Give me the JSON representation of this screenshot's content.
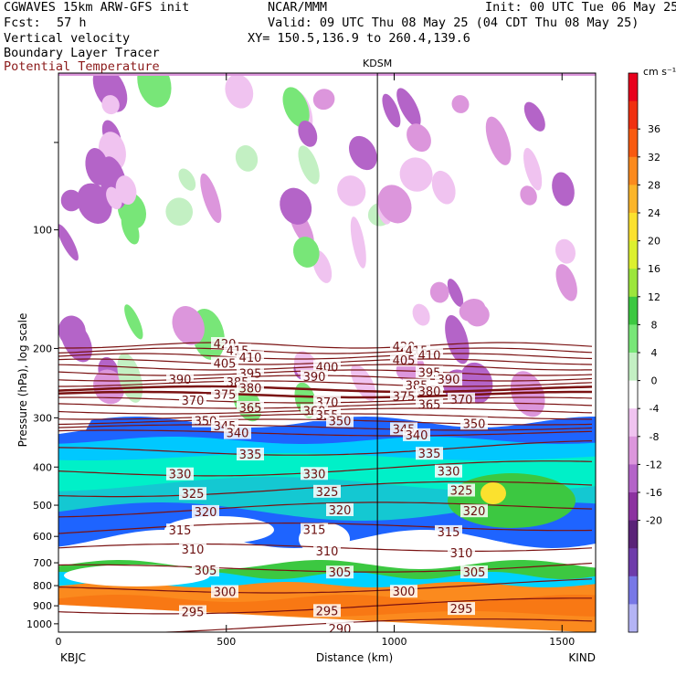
{
  "header": {
    "model": "CGWAVES 15km ARW-GFS init",
    "org": "NCAR/MMM",
    "init": "Init: 00 UTC Tue 06 May 25",
    "fcst_label": "Fcst:",
    "fcst_value": "57 h",
    "valid": "Valid: 09 UTC Thu 08 May 25 (04 CDT Thu 08 May 25)",
    "field1": "Vertical velocity",
    "xy": "XY= 150.5,136.9 to 260.4,139.6",
    "field2": "Boundary Layer Tracer",
    "field3": "Potential Temperature"
  },
  "colors": {
    "theta_contour": "#7a1212",
    "marker_line": "#000000"
  },
  "chart_data": {
    "type": "heatmap",
    "xlabel": "Distance (km)",
    "ylabel": "Pressure (hPa), log scale",
    "x_ticks": [
      "0",
      "500",
      "1000",
      "1500"
    ],
    "x_range": [
      0,
      1600
    ],
    "y_ticks": [
      "100",
      "200",
      "300",
      "400",
      "500",
      "600",
      "700",
      "800",
      "900",
      "1000"
    ],
    "y_scale": "log",
    "y_range": [
      1050,
      40
    ],
    "left_station": "KBJC",
    "right_station": "KIND",
    "marker_label": "KDSM",
    "marker_x_km": 950,
    "colorbar": {
      "unit": "cm s⁻¹",
      "labels": [
        "36",
        "32",
        "28",
        "24",
        "20",
        "16",
        "12",
        "8",
        "4",
        "0",
        "-4",
        "-8",
        "-12",
        "-16",
        "-20"
      ],
      "colors": [
        "#e8001c",
        "#f03010",
        "#f85a10",
        "#fb8a1e",
        "#fbb52a",
        "#fbe12e",
        "#dcf02e",
        "#9ce63c",
        "#3cc841",
        "#78e678",
        "#c3f0c3",
        "#ffffff",
        "#f0c3f0",
        "#dc96dc",
        "#b464c8",
        "#8c32a0",
        "#5a2378",
        "#6e3caa",
        "#7878e6",
        "#b4b4f5"
      ]
    },
    "theta_contours": [
      {
        "value": 420,
        "labels": [
          "420",
          "420"
        ]
      },
      {
        "value": 415,
        "labels": [
          "415",
          "415"
        ]
      },
      {
        "value": 410,
        "labels": [
          "410",
          "410"
        ]
      },
      {
        "value": 405,
        "labels": [
          "405",
          "405"
        ]
      },
      {
        "value": 400,
        "labels": [
          "400"
        ]
      },
      {
        "value": 395,
        "labels": [
          "395",
          "395"
        ]
      },
      {
        "value": 390,
        "labels": [
          "390",
          "390",
          "390"
        ]
      },
      {
        "value": 385,
        "labels": [
          "385",
          "385"
        ]
      },
      {
        "value": 380,
        "labels": [
          "380",
          "380"
        ]
      },
      {
        "value": 375,
        "labels": [
          "375",
          "375"
        ]
      },
      {
        "value": 370,
        "labels": [
          "370",
          "370",
          "370"
        ]
      },
      {
        "value": 365,
        "labels": [
          "365",
          "365"
        ]
      },
      {
        "value": 360,
        "labels": [
          "360"
        ]
      },
      {
        "value": 355,
        "labels": [
          "355"
        ]
      },
      {
        "value": 350,
        "labels": [
          "350",
          "350",
          "350"
        ]
      },
      {
        "value": 345,
        "labels": [
          "345",
          "345"
        ]
      },
      {
        "value": 340,
        "labels": [
          "340",
          "340"
        ]
      },
      {
        "value": 335,
        "labels": [
          "335",
          "335"
        ]
      },
      {
        "value": 330,
        "labels": [
          "330",
          "330",
          "330"
        ]
      },
      {
        "value": 325,
        "labels": [
          "325",
          "325",
          "325"
        ]
      },
      {
        "value": 320,
        "labels": [
          "320",
          "320",
          "320"
        ]
      },
      {
        "value": 315,
        "labels": [
          "315",
          "315",
          "315"
        ]
      },
      {
        "value": 310,
        "labels": [
          "310",
          "310",
          "310"
        ]
      },
      {
        "value": 305,
        "labels": [
          "305",
          "305",
          "305"
        ]
      },
      {
        "value": 300,
        "labels": [
          "300",
          "300"
        ]
      },
      {
        "value": 295,
        "labels": [
          "295",
          "295",
          "295"
        ]
      },
      {
        "value": 290,
        "labels": [
          "290"
        ]
      }
    ]
  }
}
